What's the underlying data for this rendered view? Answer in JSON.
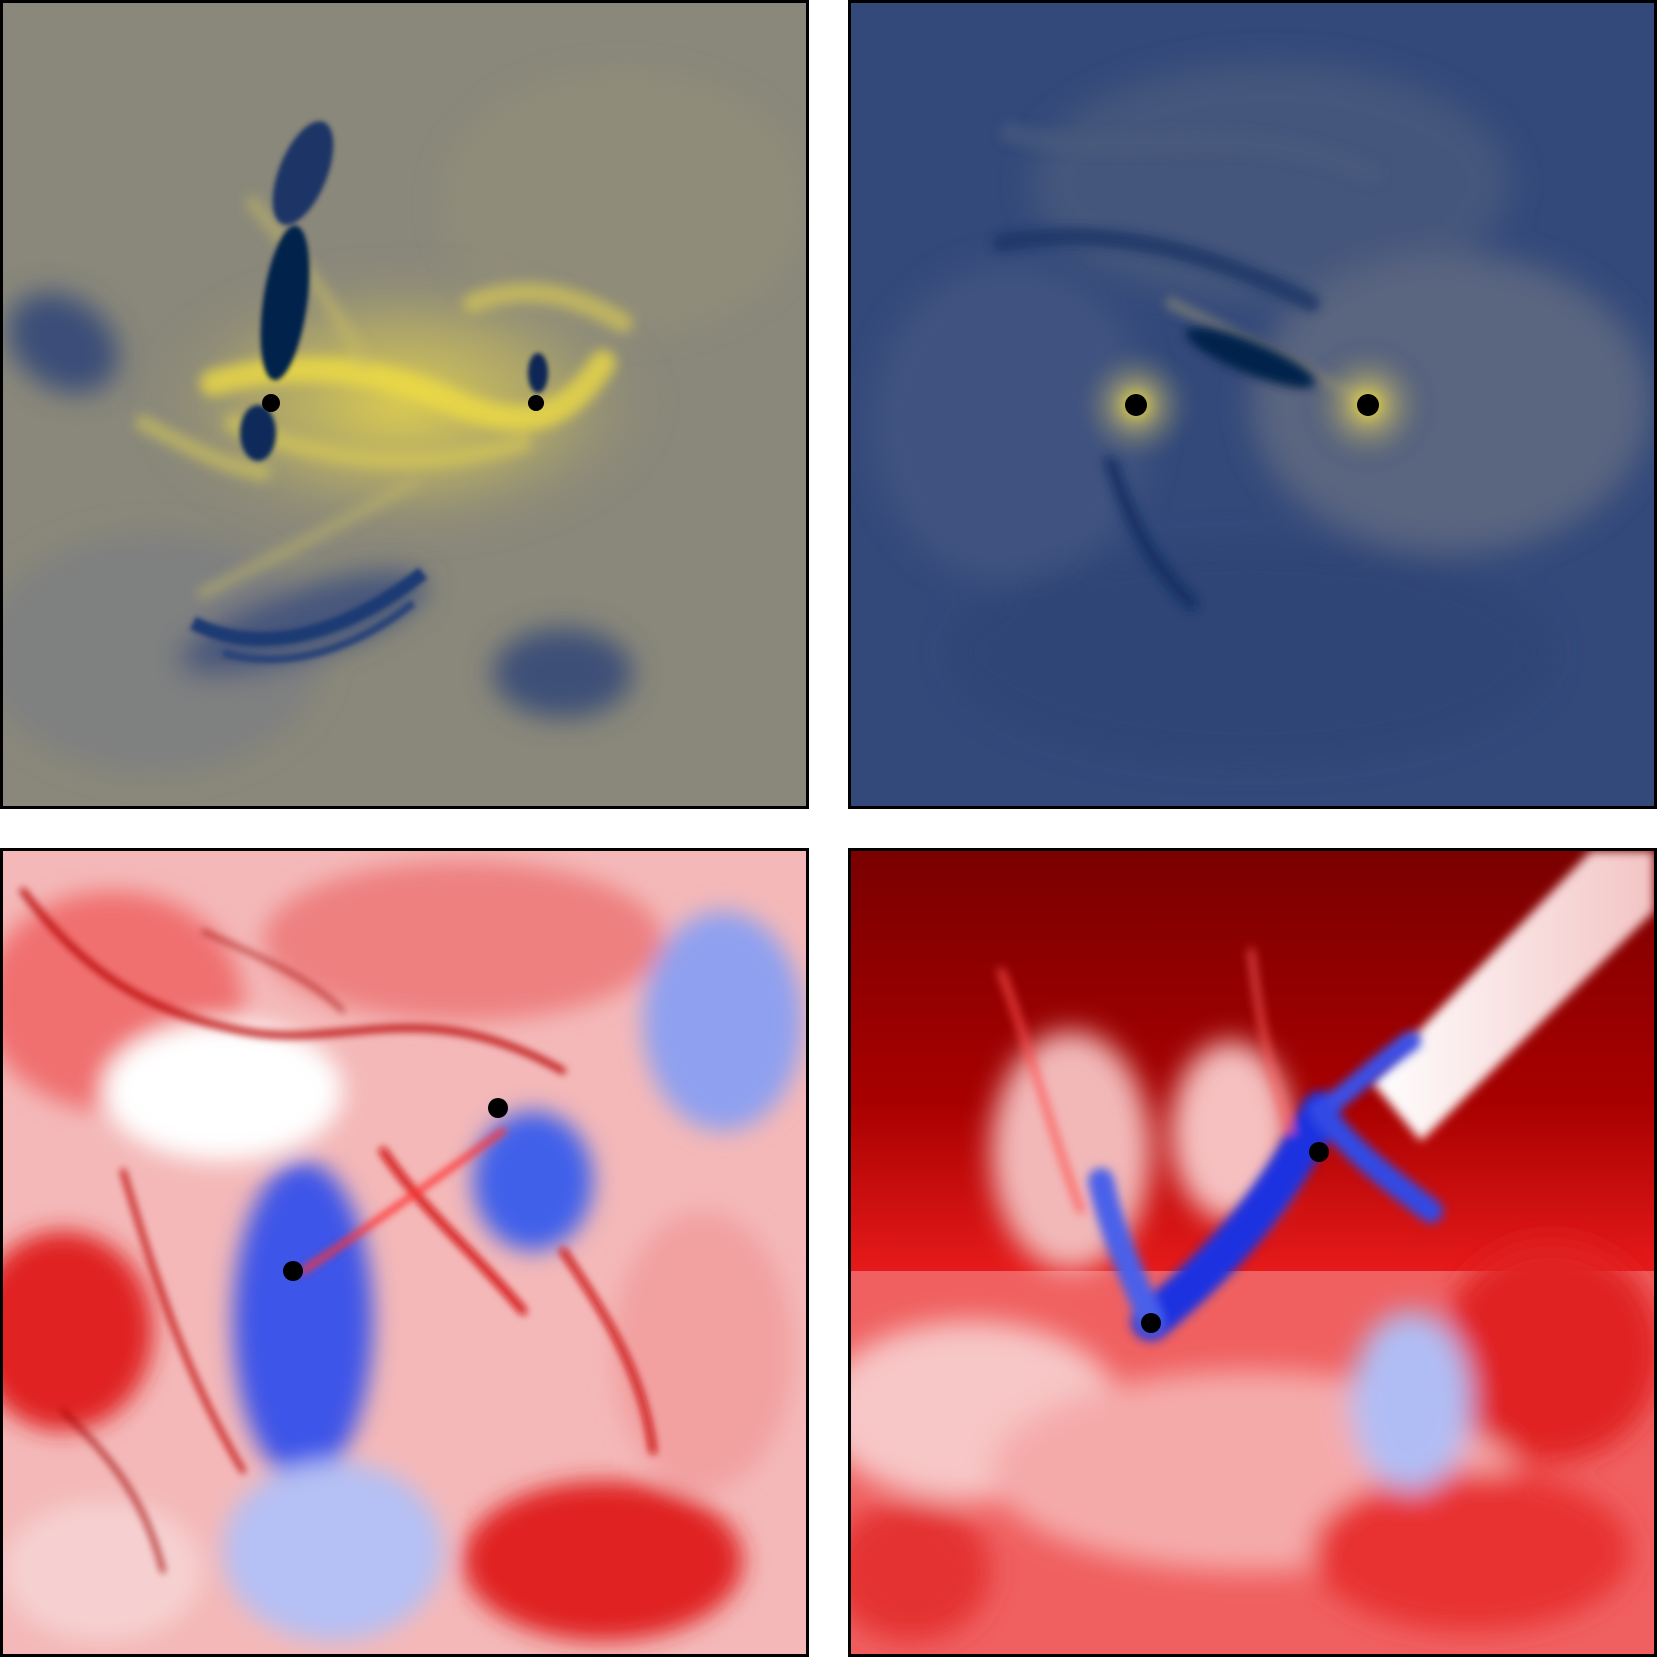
{
  "panels": [
    {
      "id": "top-left",
      "colormap": "cividis",
      "colors": {
        "low": "#00204c",
        "mid": "#8e8a78",
        "high": "#f2e040"
      },
      "sink_particles": 2
    },
    {
      "id": "top-right",
      "colormap": "cividis",
      "colors": {
        "low": "#00204c",
        "mid": "#34497a",
        "high": "#f2e040"
      },
      "sink_particles": 2
    },
    {
      "id": "bottom-left",
      "colormap": "bwr",
      "colors": {
        "low": "#0a18e0",
        "mid": "#ffffff",
        "high": "#e00000",
        "dark": "#880000"
      },
      "sink_particles": 2
    },
    {
      "id": "bottom-right",
      "colormap": "bwr",
      "colors": {
        "low": "#0a18e0",
        "mid": "#ffffff",
        "high": "#e00000",
        "dark": "#7a0000"
      },
      "sink_particles": 2
    }
  ]
}
